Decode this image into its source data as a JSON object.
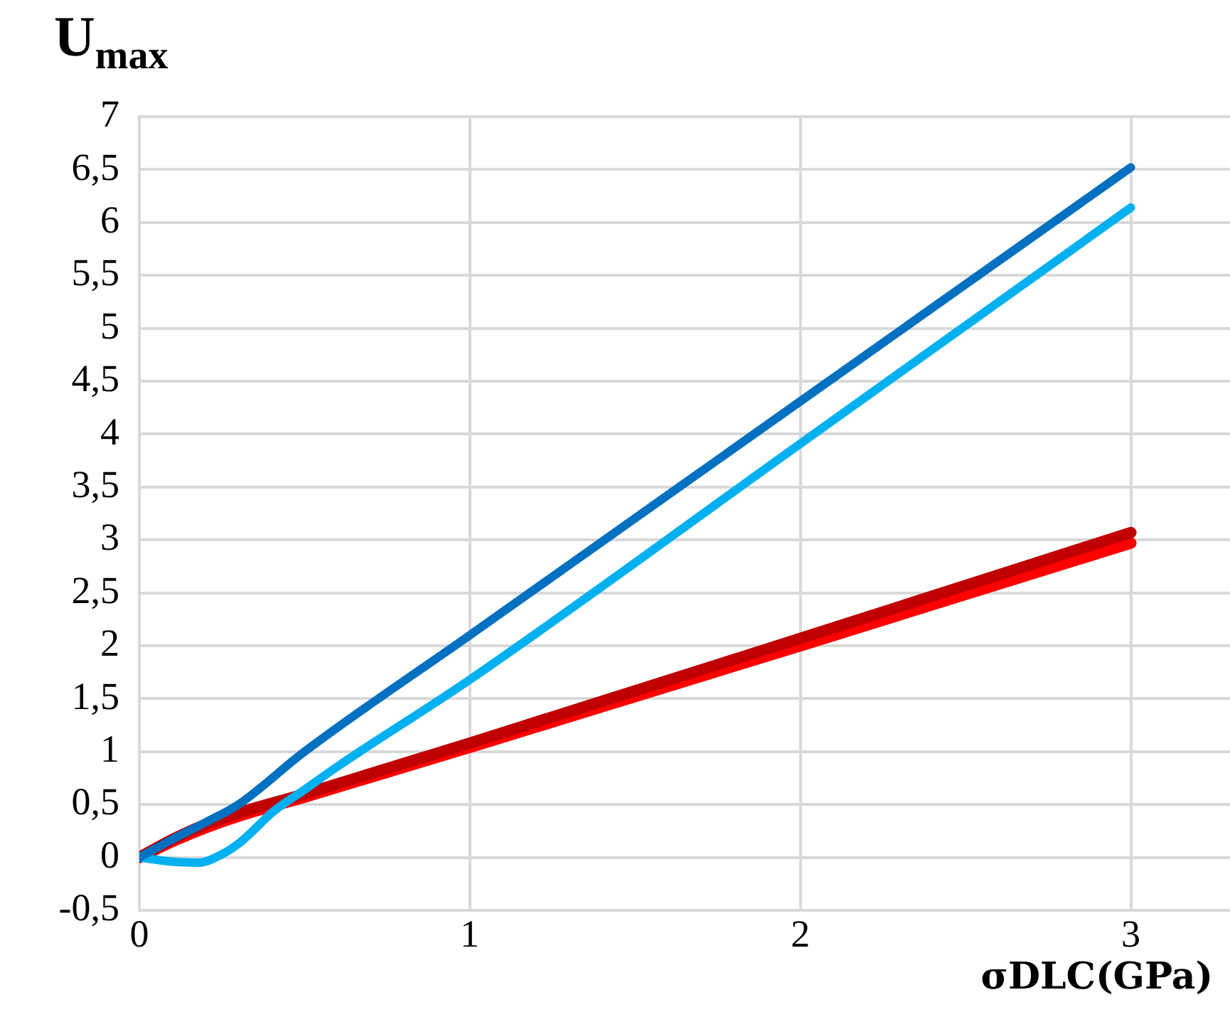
{
  "chart_data": {
    "type": "line",
    "ylabel": "U$_{max}$",
    "xlabel": "σDLC(GPa)",
    "xlim": [
      0,
      3.3
    ],
    "xticks": [
      0,
      1,
      2,
      3
    ],
    "ylim": [
      -0.5,
      7
    ],
    "yticks": [
      {
        "value": -0.5,
        "label": "-0,5"
      },
      0,
      {
        "value": 0.5,
        "label": "0,5"
      },
      1,
      {
        "value": 1.5,
        "label": "1,5"
      },
      2,
      {
        "value": 2.5,
        "label": "2,5"
      },
      3,
      {
        "value": 3.5,
        "label": "3,5"
      },
      4,
      {
        "value": 4.5,
        "label": "4,5"
      },
      5,
      {
        "value": 5.5,
        "label": "5,5"
      },
      6,
      {
        "value": 6.5,
        "label": "6,5"
      },
      7
    ],
    "grid": true,
    "marker": "none",
    "line_style": "solid",
    "legend": false,
    "series": [
      {
        "color": "#0070c0",
        "x": [
          0,
          0.1,
          0.2,
          0.3,
          0.5,
          1,
          2,
          3
        ],
        "values": [
          0,
          0.17,
          0.33,
          0.5,
          1.0,
          2.1,
          4.31,
          6.52
        ]
      },
      {
        "color": "#00b0f0",
        "x": [
          0,
          0.1,
          0.18,
          0.25,
          0.3,
          0.35,
          0.4,
          0.5,
          0.6,
          1,
          2,
          3
        ],
        "values": [
          0,
          -0.04,
          -0.05,
          0.03,
          0.13,
          0.27,
          0.42,
          0.64,
          0.86,
          1.68,
          3.91,
          6.14
        ]
      },
      {
        "color": "#c00000",
        "x": [
          0,
          0.1,
          0.2,
          0.3,
          0.5,
          1,
          2,
          3
        ],
        "values": [
          0,
          0.17,
          0.31,
          0.42,
          0.6,
          1.08,
          2.07,
          3.07
        ]
      },
      {
        "color": "#ff0000",
        "x": [
          0,
          0.1,
          0.2,
          0.3,
          0.5,
          1,
          2,
          3
        ],
        "values": [
          0,
          0.15,
          0.28,
          0.39,
          0.57,
          1.04,
          2.0,
          2.97
        ]
      }
    ]
  }
}
